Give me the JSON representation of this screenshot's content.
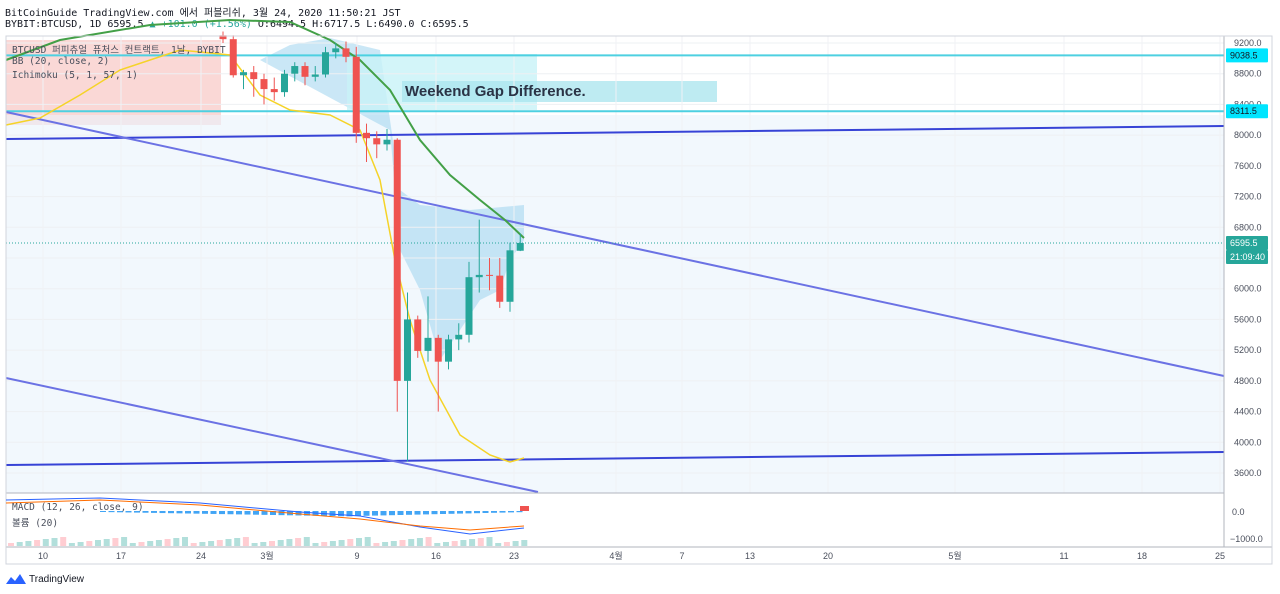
{
  "header": {
    "line1": "BitCoinGuide TradingView.com 에서 퍼블리쉬, 3월 24, 2020 11:50:21 JST",
    "symbol": "BYBIT:BTCUSD, 1D",
    "last": "6595.5",
    "change": "▲ +101.0 (+1.56%)",
    "ohlc": "O:6494.5 H:6717.5 L:6490.0 C:6595.5"
  },
  "legend": {
    "symbol_title": "BTCUSD 퍼피츄얼 퓨처스 컨트랙트, 1날, BYBIT",
    "bb": "BB (20, close, 2)",
    "ichimoku": "Ichimoku (5, 1, 57, 1)",
    "macd": "MACD (12, 26, close, 9)",
    "volume": "볼륨 (20)"
  },
  "annotation": {
    "text": "Weekend Gap Difference."
  },
  "brand": "TradingView",
  "colors": {
    "up": "#26a69a",
    "down": "#ef5350",
    "trend_dark": "#3743d6",
    "trend_light": "#6b72e4",
    "cyan": "#4dd0e1",
    "bb_mid": "#43a047",
    "bb_low": "#f5d328",
    "axis_text": "#4a4f5c"
  },
  "chart_data": {
    "type": "candlestick",
    "price_range": [
      3300,
      9300
    ],
    "y_ticks": [
      3600,
      4000,
      4400,
      4800,
      5200,
      5600,
      6000,
      6400,
      6800,
      7200,
      7600,
      8000,
      8400,
      8800,
      9200
    ],
    "y_tick_labels": [
      "3600.0",
      "4000.0",
      "4400.0",
      "4800.0",
      "5200.0",
      "5600.0",
      "6000.0",
      "6400.0",
      "6800.0",
      "7200.0",
      "7600.0",
      "8000.0",
      "8400.0",
      "8800.0",
      "9200.0"
    ],
    "x_labels": [
      "10",
      "17",
      "24",
      "3월",
      "9",
      "16",
      "23",
      "4월",
      "7",
      "13",
      "20",
      "5월",
      "11",
      "18",
      "25"
    ],
    "price_badges": [
      {
        "label": "9038.5",
        "value": 9038.5,
        "kind": "cyan"
      },
      {
        "label": "8311.5",
        "value": 8311.5,
        "kind": "cyan"
      },
      {
        "label": "6595.5",
        "value": 6595.5,
        "kind": "last"
      },
      {
        "label": "21:09:40",
        "value": 6380,
        "kind": "timer"
      }
    ],
    "candles": [
      {
        "d": 0,
        "o": 9300,
        "h": 9350,
        "l": 9200,
        "c": 9250
      },
      {
        "d": 1,
        "o": 9250,
        "h": 9300,
        "l": 8750,
        "c": 8780
      },
      {
        "d": 2,
        "o": 8780,
        "h": 8850,
        "l": 8600,
        "c": 8820
      },
      {
        "d": 3,
        "o": 8820,
        "h": 8900,
        "l": 8500,
        "c": 8730
      },
      {
        "d": 4,
        "o": 8730,
        "h": 8800,
        "l": 8400,
        "c": 8600
      },
      {
        "d": 5,
        "o": 8600,
        "h": 8750,
        "l": 8450,
        "c": 8560
      },
      {
        "d": 6,
        "o": 8560,
        "h": 8850,
        "l": 8500,
        "c": 8800
      },
      {
        "d": 7,
        "o": 8800,
        "h": 8950,
        "l": 8700,
        "c": 8900
      },
      {
        "d": 8,
        "o": 8900,
        "h": 8950,
        "l": 8650,
        "c": 8760
      },
      {
        "d": 9,
        "o": 8760,
        "h": 8900,
        "l": 8700,
        "c": 8790
      },
      {
        "d": 10,
        "o": 8790,
        "h": 9150,
        "l": 8750,
        "c": 9080
      },
      {
        "d": 11,
        "o": 9080,
        "h": 9200,
        "l": 9000,
        "c": 9130
      },
      {
        "d": 12,
        "o": 9130,
        "h": 9220,
        "l": 8950,
        "c": 9020
      },
      {
        "d": 13,
        "o": 9020,
        "h": 9150,
        "l": 7900,
        "c": 8030
      },
      {
        "d": 14,
        "o": 8030,
        "h": 8150,
        "l": 7650,
        "c": 7960
      },
      {
        "d": 15,
        "o": 7960,
        "h": 8050,
        "l": 7700,
        "c": 7880
      },
      {
        "d": 16,
        "o": 7880,
        "h": 8080,
        "l": 7800,
        "c": 7940
      },
      {
        "d": 17,
        "o": 7940,
        "h": 7960,
        "l": 4400,
        "c": 4800
      },
      {
        "d": 18,
        "o": 4800,
        "h": 5950,
        "l": 3750,
        "c": 5600
      },
      {
        "d": 19,
        "o": 5600,
        "h": 5650,
        "l": 5100,
        "c": 5190
      },
      {
        "d": 20,
        "o": 5190,
        "h": 5900,
        "l": 5050,
        "c": 5360
      },
      {
        "d": 21,
        "o": 5360,
        "h": 5400,
        "l": 4400,
        "c": 5050
      },
      {
        "d": 22,
        "o": 5050,
        "h": 5400,
        "l": 4950,
        "c": 5340
      },
      {
        "d": 23,
        "o": 5340,
        "h": 5550,
        "l": 5200,
        "c": 5400
      },
      {
        "d": 24,
        "o": 5400,
        "h": 6350,
        "l": 5300,
        "c": 6150
      },
      {
        "d": 25,
        "o": 6150,
        "h": 6900,
        "l": 5950,
        "c": 6180
      },
      {
        "d": 26,
        "o": 6180,
        "h": 6400,
        "l": 5980,
        "c": 6170
      },
      {
        "d": 27,
        "o": 6170,
        "h": 6400,
        "l": 5750,
        "c": 5830
      },
      {
        "d": 28,
        "o": 5830,
        "h": 6600,
        "l": 5700,
        "c": 6500
      },
      {
        "d": 29,
        "o": 6494.5,
        "h": 6717.5,
        "l": 6490,
        "c": 6595.5
      }
    ],
    "macd_axis": [
      "0.0",
      "−1000.0"
    ]
  }
}
